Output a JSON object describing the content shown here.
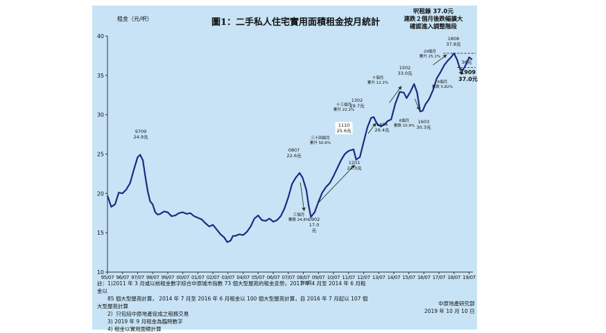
{
  "title": "圖1：二手私人住宅實用面積租金按月統計",
  "headnote": [
    "呎租錄 37.0元",
    "連跌２個月後跌幅擴大",
    "確認進入調整階段"
  ],
  "chart_data": {
    "type": "line",
    "ylabel": "租金（元/呎）",
    "ylim": [
      10,
      40
    ],
    "yticks": [
      10,
      15,
      20,
      25,
      30,
      35,
      40
    ],
    "xlabel_short": "年/月",
    "xticks": [
      "95/07",
      "96/07",
      "97/07",
      "98/07",
      "99/07",
      "00/07",
      "01/07",
      "02/07",
      "03/07",
      "04/07",
      "05/07",
      "06/07",
      "07/07",
      "08/07",
      "09/07",
      "10/07",
      "11/07",
      "12/07",
      "13/07",
      "14/07",
      "15/07",
      "16/07",
      "17/07",
      "18/07",
      "19/07"
    ],
    "series": [
      {
        "points": [
          [
            1995.5,
            19.7
          ],
          [
            1995.75,
            18.3
          ],
          [
            1996.0,
            18.6
          ],
          [
            1996.25,
            20.1
          ],
          [
            1996.5,
            20.0
          ],
          [
            1996.75,
            20.5
          ],
          [
            1997.0,
            21.3
          ],
          [
            1997.25,
            23.0
          ],
          [
            1997.5,
            24.6
          ],
          [
            1997.67,
            24.9
          ],
          [
            1997.85,
            24.2
          ],
          [
            1998.0,
            22.3
          ],
          [
            1998.17,
            20.3
          ],
          [
            1998.33,
            19.0
          ],
          [
            1998.5,
            18.6
          ],
          [
            1998.67,
            17.6
          ],
          [
            1998.83,
            17.3
          ],
          [
            1999.0,
            17.4
          ],
          [
            1999.25,
            17.7
          ],
          [
            1999.5,
            17.6
          ],
          [
            1999.75,
            17.1
          ],
          [
            2000.0,
            17.2
          ],
          [
            2000.25,
            17.5
          ],
          [
            2000.5,
            17.6
          ],
          [
            2000.75,
            17.4
          ],
          [
            2001.0,
            17.5
          ],
          [
            2001.25,
            17.1
          ],
          [
            2001.5,
            16.9
          ],
          [
            2001.75,
            16.7
          ],
          [
            2002.0,
            16.2
          ],
          [
            2002.25,
            15.8
          ],
          [
            2002.5,
            16.0
          ],
          [
            2002.75,
            15.4
          ],
          [
            2003.0,
            14.8
          ],
          [
            2003.25,
            14.4
          ],
          [
            2003.45,
            13.8
          ],
          [
            2003.67,
            14.0
          ],
          [
            2003.83,
            14.6
          ],
          [
            2004.0,
            14.6
          ],
          [
            2004.25,
            14.8
          ],
          [
            2004.5,
            14.7
          ],
          [
            2004.75,
            15.1
          ],
          [
            2005.0,
            15.8
          ],
          [
            2005.25,
            16.8
          ],
          [
            2005.5,
            17.2
          ],
          [
            2005.75,
            16.6
          ],
          [
            2006.0,
            16.5
          ],
          [
            2006.25,
            16.8
          ],
          [
            2006.5,
            16.4
          ],
          [
            2006.75,
            16.6
          ],
          [
            2007.0,
            17.1
          ],
          [
            2007.25,
            18.1
          ],
          [
            2007.5,
            19.5
          ],
          [
            2007.75,
            21.2
          ],
          [
            2008.0,
            22.0
          ],
          [
            2008.25,
            22.6
          ],
          [
            2008.45,
            22.0
          ],
          [
            2008.7,
            20.4
          ],
          [
            2008.85,
            18.5
          ],
          [
            2009.0,
            17.0
          ],
          [
            2009.25,
            17.6
          ],
          [
            2009.5,
            18.9
          ],
          [
            2009.75,
            20.1
          ],
          [
            2010.0,
            20.8
          ],
          [
            2010.25,
            21.3
          ],
          [
            2010.5,
            22.2
          ],
          [
            2010.75,
            23.2
          ],
          [
            2011.0,
            24.2
          ],
          [
            2011.25,
            25.0
          ],
          [
            2011.5,
            25.4
          ],
          [
            2011.83,
            25.6
          ],
          [
            2012.0,
            24.3
          ],
          [
            2012.25,
            24.6
          ],
          [
            2012.5,
            26.5
          ],
          [
            2012.75,
            28.4
          ],
          [
            2013.0,
            29.6
          ],
          [
            2013.17,
            29.7
          ],
          [
            2013.4,
            28.8
          ],
          [
            2013.65,
            28.5
          ],
          [
            2013.9,
            28.8
          ],
          [
            2014.1,
            29.2
          ],
          [
            2014.33,
            29.4
          ],
          [
            2014.6,
            31.4
          ],
          [
            2014.9,
            32.9
          ],
          [
            2015.17,
            32.8
          ],
          [
            2015.35,
            32.1
          ],
          [
            2015.6,
            32.9
          ],
          [
            2015.85,
            33.9
          ],
          [
            2016.05,
            32.8
          ],
          [
            2016.25,
            30.4
          ],
          [
            2016.42,
            30.5
          ],
          [
            2016.6,
            31.3
          ],
          [
            2016.85,
            32.0
          ],
          [
            2017.1,
            33.1
          ],
          [
            2017.35,
            34.6
          ],
          [
            2017.6,
            35.4
          ],
          [
            2017.85,
            36.3
          ],
          [
            2018.05,
            36.8
          ],
          [
            2018.3,
            37.3
          ],
          [
            2018.5,
            37.8
          ],
          [
            2018.7,
            37.0
          ],
          [
            2018.9,
            35.8
          ],
          [
            2019.1,
            35.7
          ],
          [
            2019.3,
            36.4
          ],
          [
            2019.5,
            37.3
          ],
          [
            2019.7,
            37.0
          ]
        ]
      }
    ],
    "reference_lines": [
      37.8,
      36.0
    ]
  },
  "annotations": {
    "a9709": [
      "9709",
      "24.9元"
    ],
    "a0807": [
      "0807",
      "22.6元"
    ],
    "a0902": [
      "0902",
      "17.0",
      "元"
    ],
    "a_fall": [
      "三個月",
      "累跌 24.8%"
    ],
    "a1110": [
      "1110",
      "25.6元"
    ],
    "a_rise1": [
      "三十四個月",
      "累升 50.6%"
    ],
    "a1201": [
      "1201",
      "24.3元"
    ],
    "a1302": [
      "1302",
      "29.7元"
    ],
    "a_rise2": [
      "十三個月",
      "累升 22.2%"
    ],
    "a1404": [
      "1404",
      "29.4元"
    ],
    "a1502": [
      "1502",
      "33.0元"
    ],
    "a_rise3": [
      "十個月",
      "累升 12.2%"
    ],
    "a_fall2": [
      "6個月",
      "累跌 10.9%"
    ],
    "a1603": [
      "1603",
      "30.3元"
    ],
    "a1808": [
      "1808",
      "37.8元"
    ],
    "a_rise4": [
      "29個月",
      "累升 25.1%"
    ],
    "a_fall3": [
      "6個月",
      "累跌 5.82%"
    ],
    "a36": [
      "36元"
    ],
    "a1909": [
      "1909",
      "37.0元"
    ]
  },
  "notes": [
    "註：1)2011 年 3 月或以前租金數字綜合中原城市指數 73 個大型屋苑的租金走勢，2011 年 4 月至 2014 年 6 月租",
    "金以",
    "　　85 個大型屋苑計算， 2014 年 7 月至 2016 年 6 月租金以 100 個大型屋苑計算，自 2016 年 7 月起以 107 個",
    "大型屋苑計算",
    "　　2）只包括中原地產促成之租務交易",
    "　　3) 2019 年 9 月租金為臨時數字",
    "　　4) 租金以實用面積計算"
  ],
  "source": [
    "中原地產研究部",
    "2019 年 10 月 10 日"
  ],
  "colors": {
    "line": "#1a2a80",
    "background": "#c7e3f5",
    "ref_line": "#333333"
  }
}
